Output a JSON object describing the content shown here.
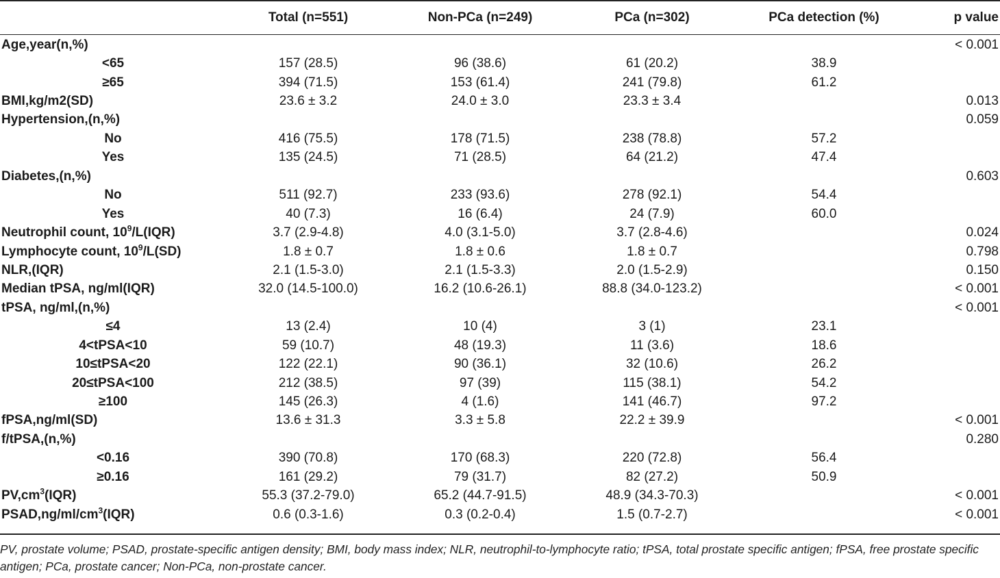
{
  "header": {
    "label": "",
    "total": "Total (n=551)",
    "non_pca": "Non-PCa (n=249)",
    "pca": "PCa (n=302)",
    "detection": "PCa detection (%)",
    "p_value": "p value"
  },
  "rows": [
    {
      "label": "Age,year(n,%)",
      "sub": false,
      "total": "",
      "non_pca": "",
      "pca": "",
      "detection": "",
      "p": "< 0.001"
    },
    {
      "label": "<65",
      "sub": true,
      "total": "157 (28.5)",
      "non_pca": "96 (38.6)",
      "pca": "61 (20.2)",
      "detection": "38.9",
      "p": ""
    },
    {
      "label": "≥65",
      "sub": true,
      "total": "394 (71.5)",
      "non_pca": "153 (61.4)",
      "pca": "241 (79.8)",
      "detection": "61.2",
      "p": ""
    },
    {
      "label": "BMI,kg/m2(SD)",
      "sub": false,
      "total": "23.6 ± 3.2",
      "non_pca": "24.0 ± 3.0",
      "pca": "23.3 ± 3.4",
      "detection": "",
      "p": "0.013"
    },
    {
      "label": "Hypertension,(n,%)",
      "sub": false,
      "total": "",
      "non_pca": "",
      "pca": "",
      "detection": "",
      "p": "0.059"
    },
    {
      "label": "No",
      "sub": true,
      "total": "416 (75.5)",
      "non_pca": "178 (71.5)",
      "pca": "238 (78.8)",
      "detection": "57.2",
      "p": ""
    },
    {
      "label": "Yes",
      "sub": true,
      "total": "135 (24.5)",
      "non_pca": "71 (28.5)",
      "pca": "64 (21.2)",
      "detection": "47.4",
      "p": ""
    },
    {
      "label": "Diabetes,(n,%)",
      "sub": false,
      "total": "",
      "non_pca": "",
      "pca": "",
      "detection": "",
      "p": "0.603"
    },
    {
      "label": "No",
      "sub": true,
      "total": "511 (92.7)",
      "non_pca": "233 (93.6)",
      "pca": "278 (92.1)",
      "detection": "54.4",
      "p": ""
    },
    {
      "label": "Yes",
      "sub": true,
      "total": "40 (7.3)",
      "non_pca": "16 (6.4)",
      "pca": "24 (7.9)",
      "detection": "60.0",
      "p": ""
    },
    {
      "label": "Neutrophil count, 10",
      "sup": "9",
      "label_after": "/L(IQR)",
      "sub": false,
      "total": "3.7 (2.9-4.8)",
      "non_pca": "4.0 (3.1-5.0)",
      "pca": "3.7 (2.8-4.6)",
      "detection": "",
      "p": "0.024"
    },
    {
      "label": "Lymphocyte count, 10",
      "sup": "9",
      "label_after": "/L(SD)",
      "sub": false,
      "total": "1.8 ± 0.7",
      "non_pca": "1.8 ± 0.6",
      "pca": "1.8 ± 0.7",
      "detection": "",
      "p": "0.798"
    },
    {
      "label": "NLR,(IQR)",
      "sub": false,
      "total": "2.1 (1.5-3.0)",
      "non_pca": "2.1 (1.5-3.3)",
      "pca": "2.0 (1.5-2.9)",
      "detection": "",
      "p": "0.150"
    },
    {
      "label": "Median tPSA, ng/ml(IQR)",
      "sub": false,
      "total": "32.0 (14.5-100.0)",
      "non_pca": "16.2 (10.6-26.1)",
      "pca": "88.8 (34.0-123.2)",
      "detection": "",
      "p": "< 0.001"
    },
    {
      "label": "tPSA, ng/ml,(n,%)",
      "sub": false,
      "total": "",
      "non_pca": "",
      "pca": "",
      "detection": "",
      "p": "< 0.001"
    },
    {
      "label": "≤4",
      "sub": true,
      "total": "13 (2.4)",
      "non_pca": "10 (4)",
      "pca": "3 (1)",
      "detection": "23.1",
      "p": ""
    },
    {
      "label": "4<tPSA<10",
      "sub": true,
      "total": "59 (10.7)",
      "non_pca": "48 (19.3)",
      "pca": "11 (3.6)",
      "detection": "18.6",
      "p": ""
    },
    {
      "label": "10≤tPSA<20",
      "sub": true,
      "total": "122 (22.1)",
      "non_pca": "90 (36.1)",
      "pca": "32 (10.6)",
      "detection": "26.2",
      "p": ""
    },
    {
      "label": "20≤tPSA<100",
      "sub": true,
      "total": "212 (38.5)",
      "non_pca": "97 (39)",
      "pca": "115 (38.1)",
      "detection": "54.2",
      "p": ""
    },
    {
      "label": "≥100",
      "sub": true,
      "total": "145 (26.3)",
      "non_pca": "4 (1.6)",
      "pca": "141 (46.7)",
      "detection": "97.2",
      "p": ""
    },
    {
      "label": "fPSA,ng/ml(SD)",
      "sub": false,
      "total": "13.6 ± 31.3",
      "non_pca": "3.3 ± 5.8",
      "pca": "22.2 ± 39.9",
      "detection": "",
      "p": "< 0.001"
    },
    {
      "label": "f/tPSA,(n,%)",
      "sub": false,
      "total": "",
      "non_pca": "",
      "pca": "",
      "detection": "",
      "p": "0.280"
    },
    {
      "label": "<0.16",
      "sub": true,
      "total": "390 (70.8)",
      "non_pca": "170 (68.3)",
      "pca": "220 (72.8)",
      "detection": "56.4",
      "p": ""
    },
    {
      "label": "≥0.16",
      "sub": true,
      "total": "161 (29.2)",
      "non_pca": "79 (31.7)",
      "pca": "82 (27.2)",
      "detection": "50.9",
      "p": ""
    },
    {
      "label": "PV,cm",
      "sup": "3",
      "label_after": "(IQR)",
      "sub": false,
      "total": "55.3 (37.2-79.0)",
      "non_pca": "65.2 (44.7-91.5)",
      "pca": "48.9 (34.3-70.3)",
      "detection": "",
      "p": "< 0.001"
    },
    {
      "label": "PSAD,ng/ml/cm",
      "sup": "3",
      "label_after": "(IQR)",
      "sub": false,
      "total": "0.6 (0.3-1.6)",
      "non_pca": "0.3 (0.2-0.4)",
      "pca": "1.5 (0.7-2.7)",
      "detection": "",
      "p": "< 0.001"
    }
  ],
  "footnote": "PV, prostate volume; PSAD, prostate-specific antigen density; BMI, body mass index; NLR, neutrophil-to-lymphocyte ratio; tPSA, total prostate specific antigen; fPSA, free prostate specific antigen; PCa, prostate cancer; Non-PCa, non-prostate cancer."
}
